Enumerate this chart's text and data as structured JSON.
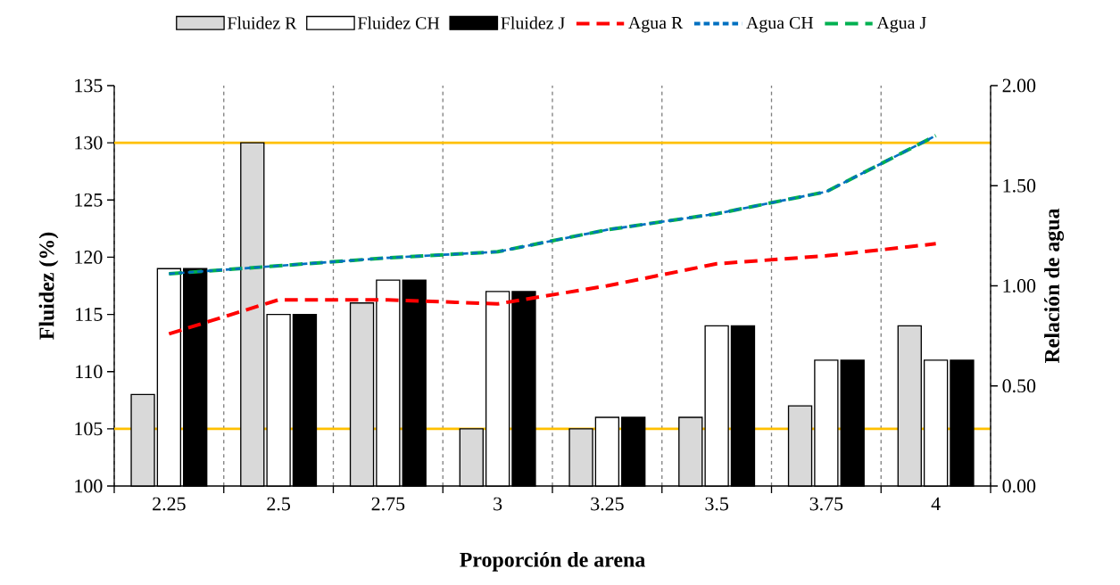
{
  "chart_data": {
    "type": "bar",
    "xlabel": "Proporción de arena",
    "ylabel": "Fluidez (%)",
    "y2label": "Relación de agua",
    "categories": [
      "2.25",
      "2.5",
      "2.75",
      "3",
      "3.25",
      "3.5",
      "3.75",
      "4"
    ],
    "series": [
      {
        "name": "Fluidez R",
        "color": "#d9d9d9",
        "values": [
          108,
          130,
          116,
          105,
          105,
          106,
          107,
          114
        ]
      },
      {
        "name": "Fluidez CH",
        "color": "#ffffff",
        "values": [
          119,
          115,
          118,
          117,
          106,
          114,
          111,
          111
        ]
      },
      {
        "name": "Fluidez J",
        "color": "#000000",
        "values": [
          119,
          115,
          118,
          117,
          106,
          114,
          111,
          111
        ]
      },
      {
        "name": "Agua R",
        "type": "line",
        "axis": "y2",
        "color": "#ff0000",
        "line_style": "dashed",
        "values": [
          0.76,
          0.93,
          0.93,
          0.91,
          1.0,
          1.11,
          1.15,
          1.21
        ]
      },
      {
        "name": "Agua CH",
        "type": "line",
        "axis": "y2",
        "color": "#0070c0",
        "line_style": "dotted",
        "values": [
          1.06,
          1.1,
          1.14,
          1.17,
          1.28,
          1.36,
          1.47,
          1.75
        ]
      },
      {
        "name": "Agua J",
        "type": "line",
        "axis": "y2",
        "color": "#00b050",
        "line_style": "dashed",
        "values": [
          1.06,
          1.1,
          1.14,
          1.17,
          1.28,
          1.36,
          1.47,
          1.75
        ]
      }
    ],
    "ylim": [
      100,
      135
    ],
    "yticks": [
      100,
      105,
      110,
      115,
      120,
      125,
      130,
      135
    ],
    "y2lim": [
      0,
      2
    ],
    "y2ticks": [
      {
        "value": 0,
        "label": "0.00"
      },
      {
        "value": 0.5,
        "label": "0.50"
      },
      {
        "value": 1,
        "label": "1.00"
      },
      {
        "value": 1.5,
        "label": "1.50"
      },
      {
        "value": 2,
        "label": "2.00"
      }
    ],
    "ref_lines": [
      {
        "axis": "y",
        "value": 130,
        "color": "#ffc000"
      },
      {
        "axis": "y",
        "value": 105,
        "color": "#ffc000"
      }
    ],
    "grid": "x",
    "legend": "top"
  }
}
